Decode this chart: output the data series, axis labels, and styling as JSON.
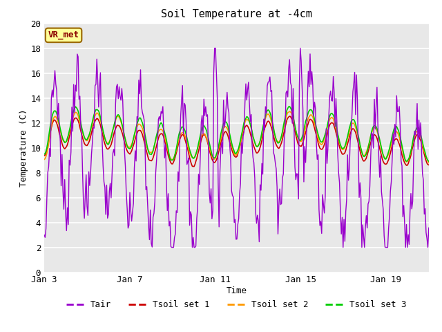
{
  "title": "Soil Temperature at -4cm",
  "xlabel": "Time",
  "ylabel": "Temperature (C)",
  "ylim": [
    0,
    20
  ],
  "yticks": [
    0,
    2,
    4,
    6,
    8,
    10,
    12,
    14,
    16,
    18,
    20
  ],
  "xtick_labels": [
    "Jan 3",
    "Jan 7",
    "Jan 11",
    "Jan 15",
    "Jan 19"
  ],
  "fig_bg_color": "#ffffff",
  "plot_bg_color": "#e8e8e8",
  "grid_color": "#ffffff",
  "colors": {
    "Tair": "#9900cc",
    "Tsoil1": "#cc0000",
    "Tsoil2": "#ff9900",
    "Tsoil3": "#00cc00"
  },
  "legend_labels": [
    "Tair",
    "Tsoil set 1",
    "Tsoil set 2",
    "Tsoil set 3"
  ],
  "annotation_text": "VR_met",
  "annotation_bg": "#ffff99",
  "annotation_border": "#996600"
}
